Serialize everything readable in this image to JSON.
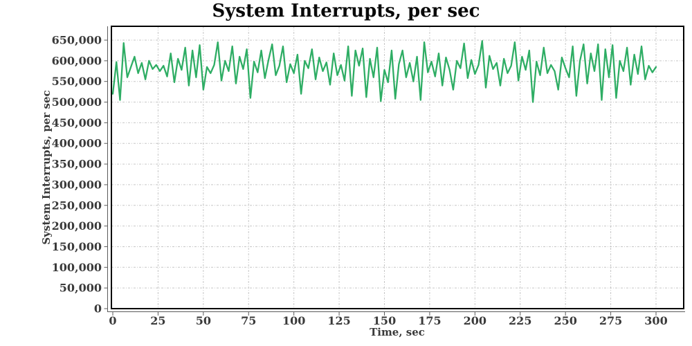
{
  "chart_data": {
    "type": "line",
    "title": "System Interrupts, per sec",
    "xlabel": "Time, sec",
    "ylabel": "System Interrupts, per sec",
    "x_start": 0,
    "x_step": 2,
    "x_ticks": [
      0,
      25,
      50,
      75,
      100,
      125,
      150,
      175,
      200,
      225,
      250,
      275,
      300
    ],
    "y_ticks": [
      0,
      50000,
      100000,
      150000,
      200000,
      250000,
      300000,
      350000,
      400000,
      450000,
      500000,
      550000,
      600000,
      650000
    ],
    "xlim": [
      0,
      315
    ],
    "ylim": [
      0,
      683000
    ],
    "grid": true,
    "legend_position": "none",
    "series": [
      {
        "name": "System Interrupts",
        "color": "#2ead64",
        "values": [
          520000,
          597000,
          505000,
          643000,
          560000,
          585000,
          610000,
          570000,
          595000,
          555000,
          600000,
          580000,
          590000,
          575000,
          588000,
          562000,
          618000,
          548000,
          605000,
          578000,
          632000,
          540000,
          625000,
          560000,
          638000,
          530000,
          585000,
          570000,
          590000,
          645000,
          552000,
          600000,
          575000,
          635000,
          545000,
          610000,
          580000,
          628000,
          510000,
          598000,
          572000,
          625000,
          558000,
          602000,
          640000,
          565000,
          588000,
          635000,
          548000,
          592000,
          570000,
          615000,
          520000,
          600000,
          582000,
          628000,
          555000,
          608000,
          575000,
          596000,
          542000,
          618000,
          565000,
          590000,
          552000,
          635000,
          515000,
          625000,
          588000,
          630000,
          512000,
          605000,
          560000,
          632000,
          502000,
          578000,
          548000,
          625000,
          508000,
          592000,
          625000,
          560000,
          595000,
          550000,
          610000,
          505000,
          645000,
          572000,
          598000,
          562000,
          618000,
          540000,
          608000,
          578000,
          530000,
          600000,
          582000,
          642000,
          558000,
          602000,
          568000,
          590000,
          648000,
          535000,
          612000,
          580000,
          595000,
          540000,
          605000,
          570000,
          588000,
          645000,
          552000,
          610000,
          578000,
          625000,
          500000,
          598000,
          565000,
          632000,
          570000,
          590000,
          575000,
          530000,
          608000,
          582000,
          560000,
          635000,
          515000,
          600000,
          640000,
          545000,
          618000,
          575000,
          640000,
          505000,
          628000,
          560000,
          638000,
          510000,
          600000,
          575000,
          632000,
          542000,
          615000,
          568000,
          635000,
          555000,
          588000,
          572000,
          585000
        ]
      }
    ]
  },
  "colors": {
    "line": "#2ead64",
    "grid": "#c6c6c6",
    "axis": "#5a5a5a",
    "border": "#000000",
    "label": "#3a3a3a",
    "title": "#0a0a0a",
    "background": "#ffffff"
  }
}
